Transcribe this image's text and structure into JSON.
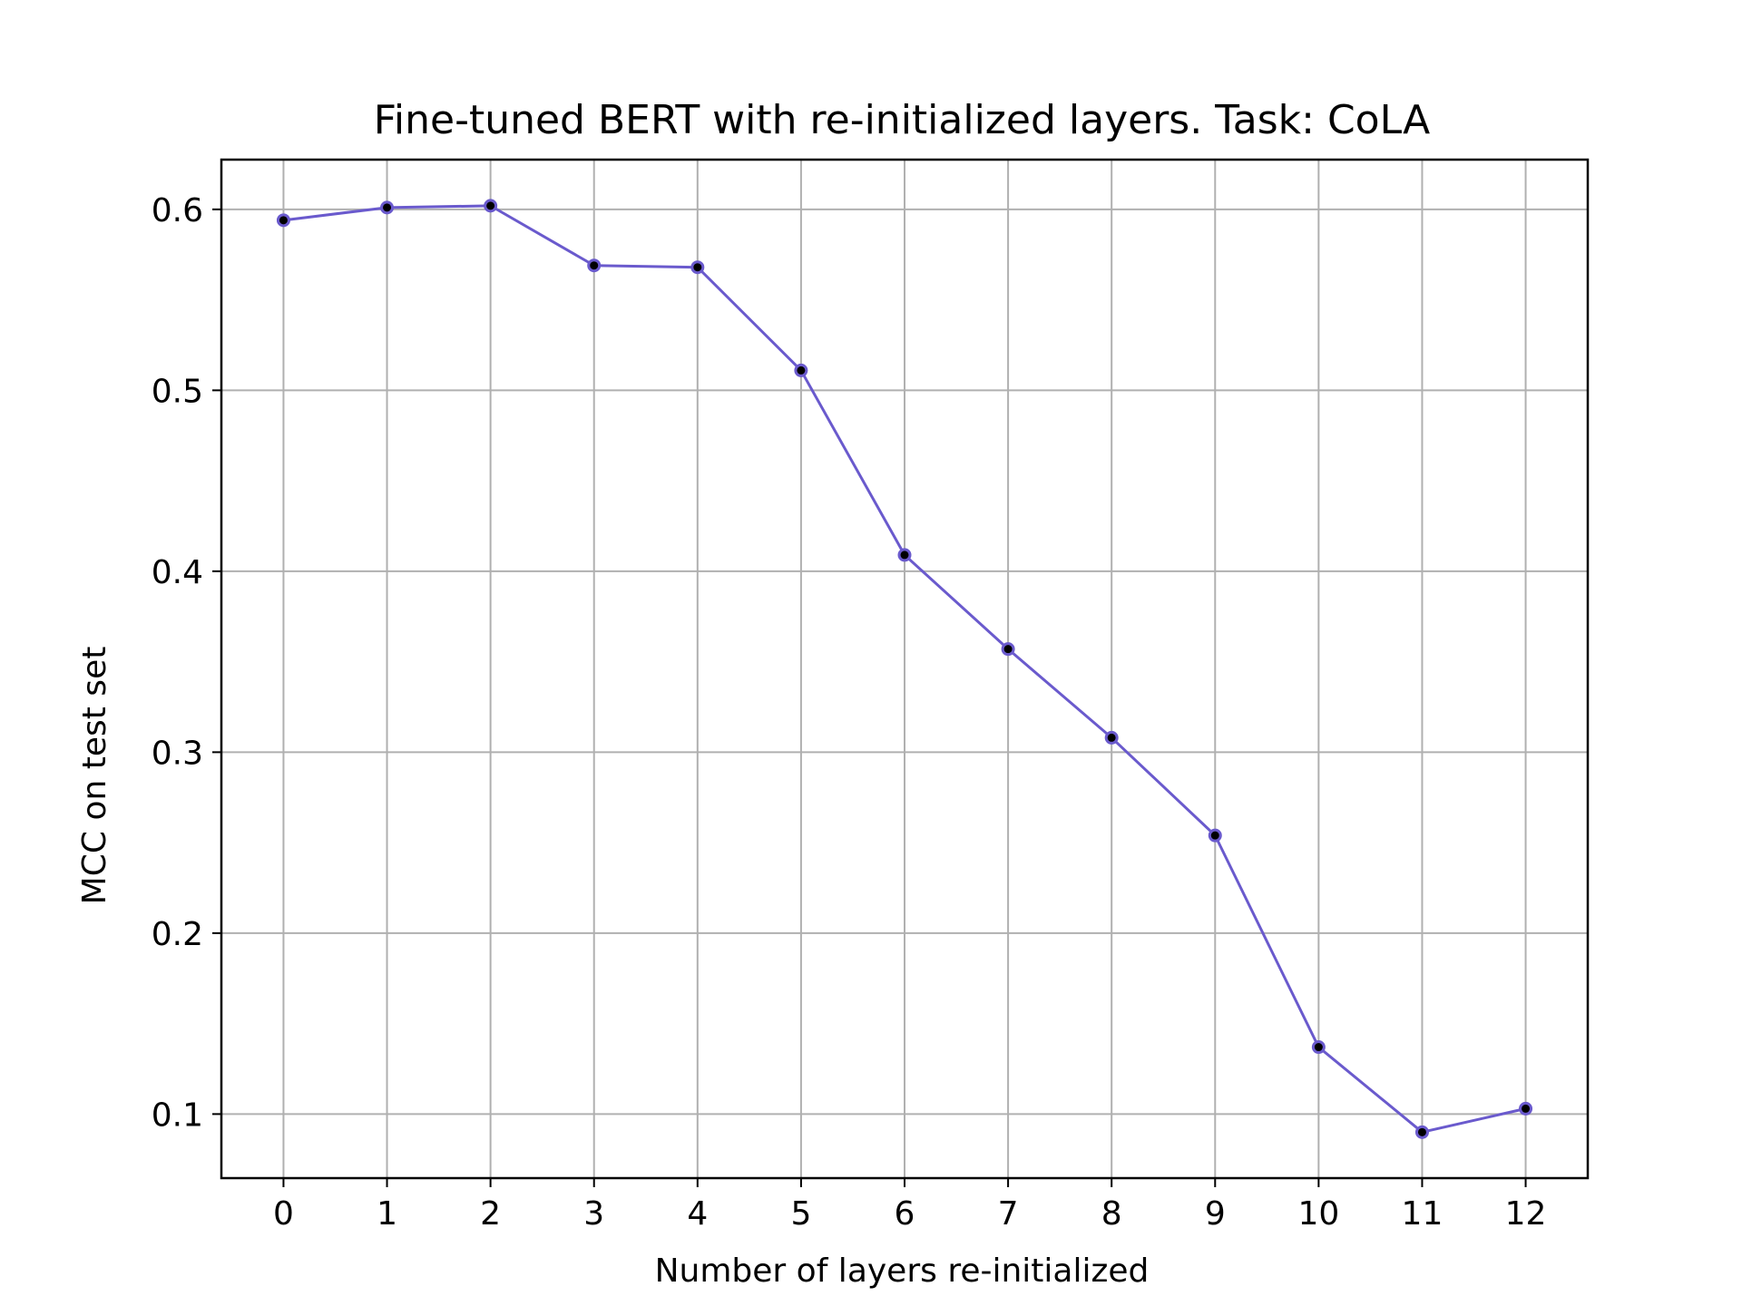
{
  "chart_data": {
    "type": "line",
    "title": "Fine-tuned BERT with re-initialized layers. Task: CoLA",
    "xlabel": "Number of layers re-initialized",
    "ylabel": "MCC on test set",
    "x": [
      0,
      1,
      2,
      3,
      4,
      5,
      6,
      7,
      8,
      9,
      10,
      11,
      12
    ],
    "series": [
      {
        "name": "",
        "values": [
          0.594,
          0.601,
          0.602,
          0.569,
          0.568,
          0.511,
          0.409,
          0.357,
          0.308,
          0.254,
          0.137,
          0.09,
          0.103
        ]
      }
    ],
    "xticks": [
      "0",
      "1",
      "2",
      "3",
      "4",
      "5",
      "6",
      "7",
      "8",
      "9",
      "10",
      "11",
      "12"
    ],
    "yticks": [
      "0.1",
      "0.2",
      "0.3",
      "0.4",
      "0.5",
      "0.6"
    ],
    "xlim": [
      -0.6,
      12.6
    ],
    "ylim": [
      0.0646,
      0.6275
    ],
    "grid": true,
    "colors": {
      "line": "#6a5acd",
      "marker_face": "#000000",
      "marker_edge": "#6a5acd",
      "grid": "#b0b0b0",
      "frame": "#000000"
    }
  }
}
